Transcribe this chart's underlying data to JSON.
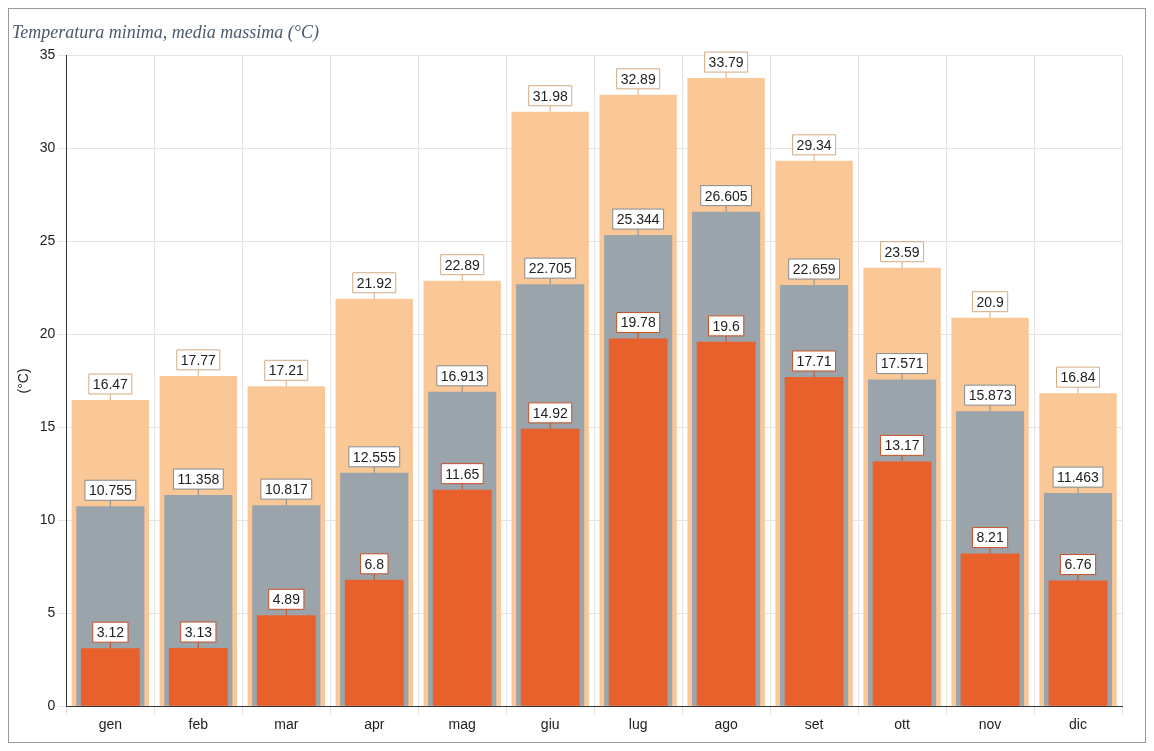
{
  "chart_data": {
    "type": "bar",
    "title": "Temperatura minima, media massima (°C)",
    "ylabel": "(°C)",
    "categories": [
      "gen",
      "feb",
      "mar",
      "apr",
      "mag",
      "giu",
      "lug",
      "ago",
      "set",
      "ott",
      "nov",
      "dic"
    ],
    "series": [
      {
        "color": "#e8602c",
        "values": [
          3.12,
          3.13,
          4.89,
          6.8,
          11.65,
          14.92,
          19.78,
          19.6,
          17.71,
          13.17,
          8.21,
          6.76
        ]
      },
      {
        "color": "#9ba3ab",
        "values": [
          10.755,
          11.358,
          10.817,
          12.555,
          16.913,
          22.705,
          25.344,
          26.605,
          22.659,
          17.571,
          15.873,
          11.463
        ]
      },
      {
        "color": "#f9c896",
        "values": [
          16.47,
          17.77,
          17.21,
          21.92,
          22.89,
          31.98,
          32.89,
          33.79,
          29.34,
          23.59,
          20.9,
          16.84
        ]
      }
    ],
    "ylim": [
      0,
      35
    ],
    "yticks": [
      0,
      5,
      10,
      15,
      20,
      25,
      30,
      35
    ],
    "grid": true,
    "data_labels": true,
    "legend": false
  }
}
